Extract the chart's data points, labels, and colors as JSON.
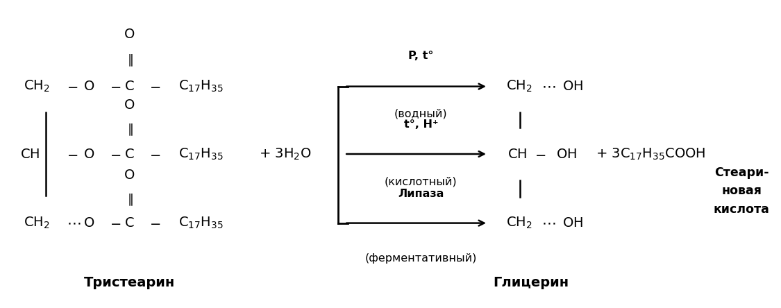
{
  "bg_color": "#ffffff",
  "text_color": "#000000",
  "fig_width": 11.25,
  "fig_height": 4.44,
  "dpi": 100,
  "tristearate_label": "Тристеарин",
  "glycerol_label": "Глицерин",
  "stearic_label": "Стеари-\nновая\nкислота",
  "arrow1_top": "P, t°",
  "arrow1_bot": "(водный)",
  "arrow2_top": "t°, H⁺",
  "arrow2_bot": "(кислотный)",
  "arrow3_top": "Липаза",
  "arrow3_bot": "(ферментативный)",
  "fs": 14,
  "fs_small": 11.5,
  "fs_title": 14
}
